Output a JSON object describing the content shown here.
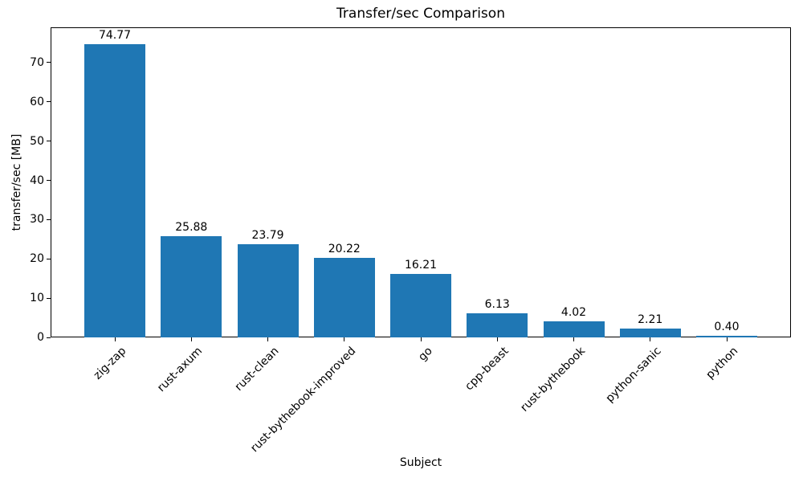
{
  "chart_data": {
    "type": "bar",
    "title": "Transfer/sec Comparison",
    "xlabel": "Subject",
    "ylabel": "transfer/sec [MB]",
    "categories": [
      "zig-zap",
      "rust-axum",
      "rust-clean",
      "rust-bythebook-improved",
      "go",
      "cpp-beast",
      "rust-bythebook",
      "python-sanic",
      "python"
    ],
    "values": [
      74.77,
      25.88,
      23.79,
      20.22,
      16.21,
      6.13,
      4.02,
      2.21,
      0.4
    ],
    "bar_labels": [
      "74.77",
      "25.88",
      "23.79",
      "20.22",
      "16.21",
      "6.13",
      "4.02",
      "2.21",
      "0.40"
    ],
    "yticks": [
      0,
      10,
      20,
      30,
      40,
      50,
      60,
      70
    ],
    "ylim": [
      0,
      79
    ],
    "bar_color": "#1f77b4",
    "axis_color": "#000000",
    "background_color": "#ffffff",
    "x_tick_rotation_deg": 45,
    "grid": false,
    "legend": "none"
  }
}
